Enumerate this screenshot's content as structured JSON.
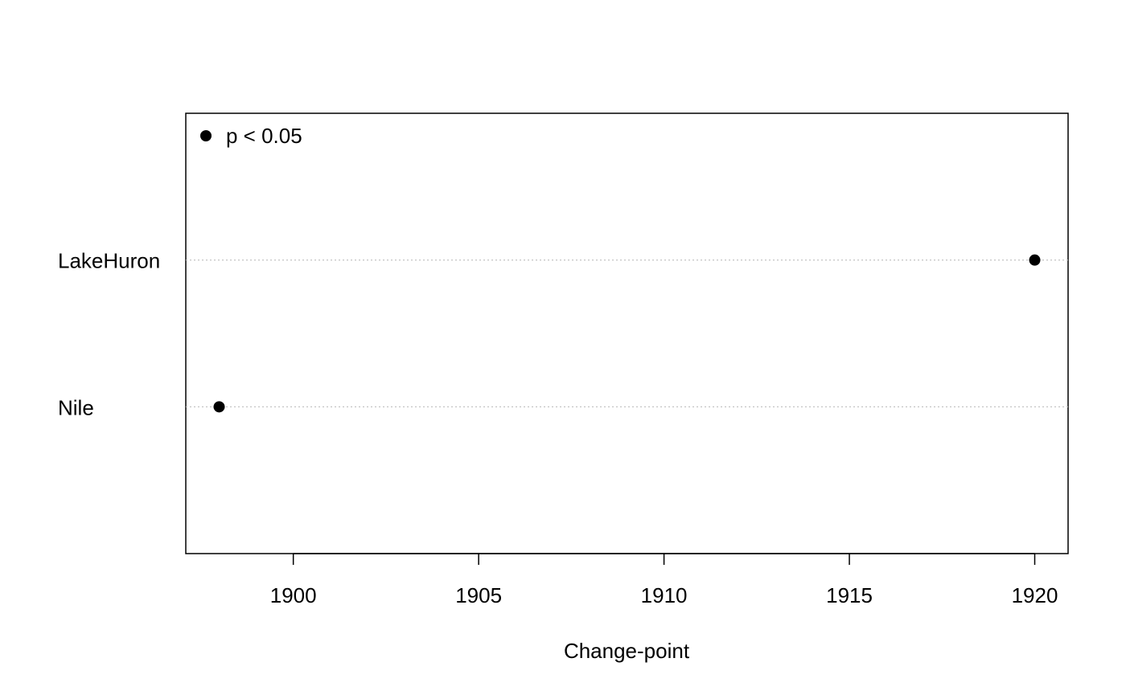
{
  "chart_data": {
    "type": "scatter",
    "categories": [
      "LakeHuron",
      "Nile"
    ],
    "points": [
      {
        "category": "LakeHuron",
        "x": 1920
      },
      {
        "category": "Nile",
        "x": 1898
      }
    ],
    "xlabel": "Change-point",
    "ylabel": "",
    "title": "",
    "xlim": [
      1897.1,
      1920.9
    ],
    "xticks": [
      1900,
      1905,
      1910,
      1915,
      1920
    ],
    "xtick_labels": [
      "1900",
      "1905",
      "1910",
      "1915",
      "1920"
    ],
    "legend": {
      "placement": "top-left",
      "entries": [
        {
          "label": "p < 0.05"
        }
      ]
    },
    "grid": "dotted horizontal guides per category",
    "colors": {
      "points": "#000000",
      "guides": "#bebebe",
      "frame": "#000000"
    }
  }
}
